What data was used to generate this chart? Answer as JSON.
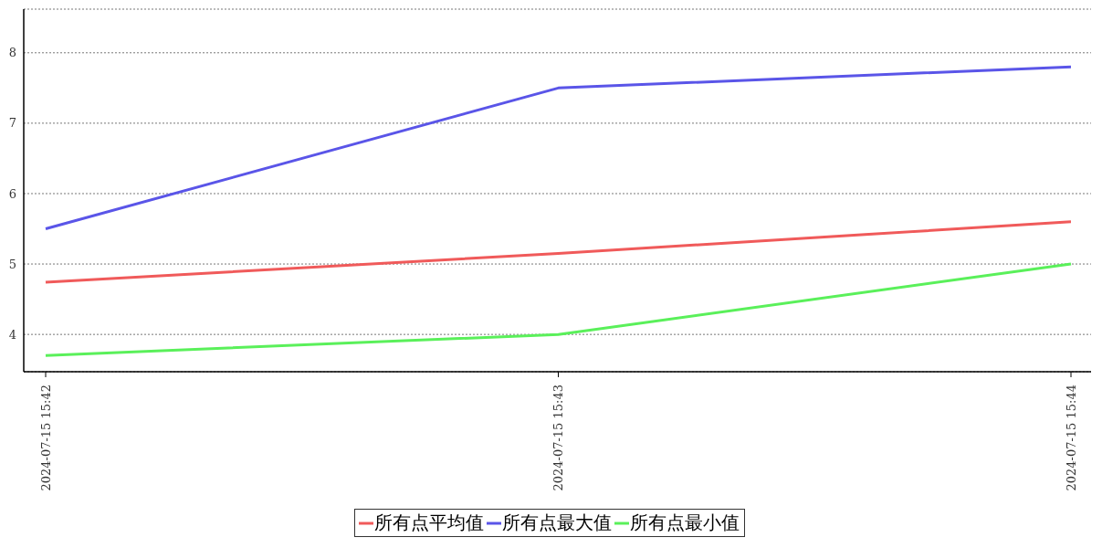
{
  "chart_data": {
    "type": "line",
    "categories": [
      "2024-07-15 15:42",
      "2024-07-15 15:43",
      "2024-07-15 15:44"
    ],
    "series": [
      {
        "name": "所有点平均值",
        "color": "#f05a5a",
        "values": [
          4.74,
          5.15,
          5.6
        ]
      },
      {
        "name": "所有点最大值",
        "color": "#5a55e8",
        "values": [
          5.5,
          7.5,
          7.8
        ]
      },
      {
        "name": "所有点最小值",
        "color": "#5af05a",
        "values": [
          3.7,
          4.0,
          5.0
        ]
      }
    ],
    "ylim": [
      3.47,
      8.62
    ],
    "yticks": [
      4,
      5,
      6,
      7,
      8
    ],
    "grid": "y",
    "legend": "bottom",
    "marker": "none",
    "line_style": "solid"
  }
}
